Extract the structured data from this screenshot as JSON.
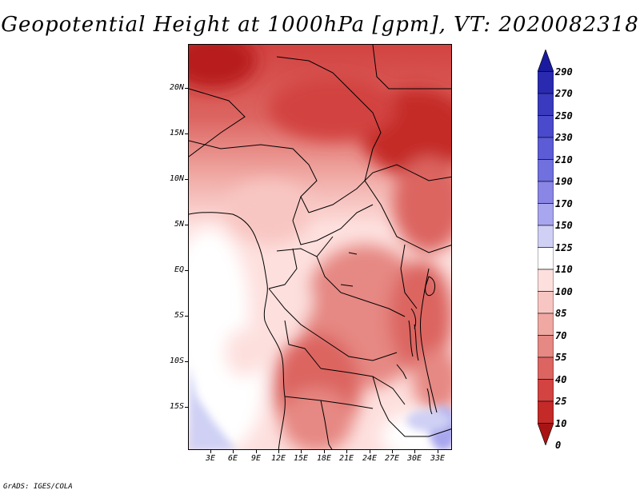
{
  "title": "Geopotential Height at 1000hPa [gpm], VT: 2020082318",
  "map": {
    "lat_labels": [
      "20N",
      "15N",
      "10N",
      "5N",
      "EQ",
      "5S",
      "10S",
      "15S"
    ],
    "lon_labels": [
      "3E",
      "6E",
      "9E",
      "12E",
      "15E",
      "18E",
      "21E",
      "24E",
      "27E",
      "30E",
      "33E"
    ]
  },
  "colorbar": {
    "labels": [
      "290",
      "270",
      "250",
      "230",
      "210",
      "190",
      "170",
      "150",
      "125",
      "110",
      "100",
      "85",
      "70",
      "55",
      "40",
      "25",
      "10",
      "0"
    ],
    "colors": [
      "#1a1a9e",
      "#2a2ab0",
      "#3a3abf",
      "#4a4acc",
      "#5c5cd6",
      "#7070de",
      "#8a86e6",
      "#a8a6ee",
      "#cfd0f4",
      "#ffffff",
      "#fde0de",
      "#f8c6c2",
      "#f0a8a3",
      "#e68883",
      "#dc6561",
      "#d24341",
      "#c42a28",
      "#a81414"
    ]
  },
  "footer": "GrADS: IGES/COLA"
}
